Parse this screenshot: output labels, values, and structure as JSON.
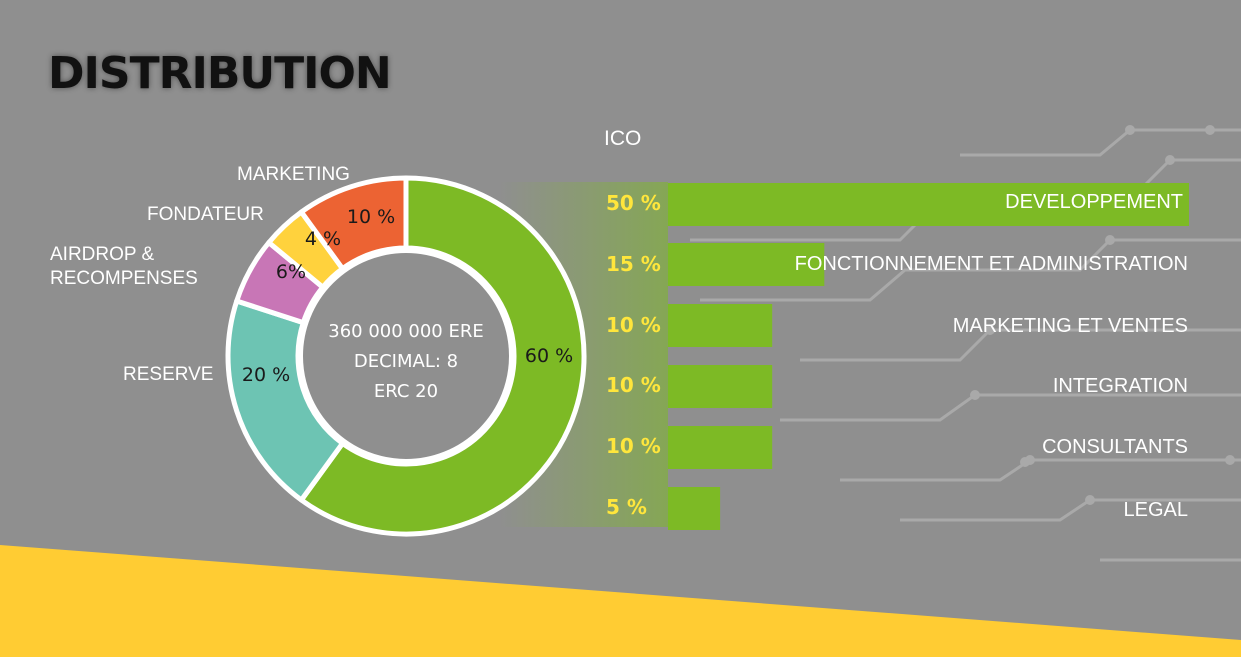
{
  "title": "DISTRIBUTION",
  "colors": {
    "background": "#8f8f8f",
    "green": "#7dba25",
    "teal": "#6dc4b3",
    "purple": "#c876b6",
    "yellow": "#ffd23d",
    "orange": "#ec6333",
    "accent_band": "#ffcc33",
    "pct_text": "#ffe63c"
  },
  "donut": {
    "center_lines": [
      "360 000 000 ERE",
      "DECIMAL: 8",
      "ERC 20"
    ]
  },
  "chart_data": [
    {
      "type": "pie",
      "labels": [
        "ICO",
        "RESERVE",
        "AIRDROP &\nRECOMPENSES",
        "FONDATEUR",
        "MARKETING"
      ],
      "values": [
        60,
        20,
        6,
        4,
        10
      ],
      "value_labels": [
        "60 %",
        "20 %",
        "6%",
        "4 %",
        "10 %"
      ],
      "colors": [
        "#7dba25",
        "#6dc4b3",
        "#c876b6",
        "#ffd23d",
        "#ec6333"
      ]
    },
    {
      "type": "bar",
      "title": "ICO",
      "categories": [
        "DEVELOPPEMENT",
        "FONCTIONNEMENT ET ADMINISTRATION",
        "MARKETING ET VENTES",
        "INTEGRATION",
        "CONSULTANTS",
        "LEGAL"
      ],
      "values": [
        50,
        15,
        10,
        10,
        10,
        5
      ],
      "value_labels": [
        "50 %",
        "15 %",
        "10 %",
        "10 %",
        "10 %",
        "5 %"
      ],
      "xlim": [
        0,
        50
      ]
    }
  ]
}
